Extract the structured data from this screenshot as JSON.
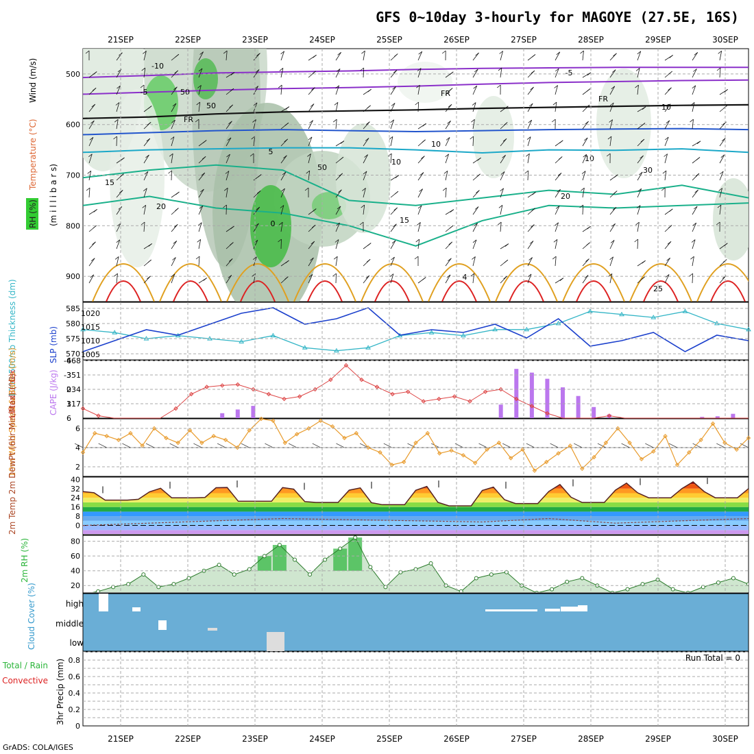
{
  "title": "GFS 0~10day 3-hourly for MAGOYE (27.5E, 16S)",
  "dates": [
    "21SEP",
    "22SEP",
    "23SEP",
    "24SEP",
    "25SEP",
    "26SEP",
    "27SEP",
    "28SEP",
    "29SEP",
    "30SEP"
  ],
  "credit": "GrADS: COLA/IGES",
  "colors": {
    "temp_cold": "#8a2fc9",
    "temp_cool": "#2255cc",
    "temp_mid": "#1ba8c8",
    "temp_warm": "#19b08a",
    "temp_hot": "#e0a020",
    "temp_very_hot": "#dd2222",
    "thickness": "#33b5c6",
    "slp": "#1a3fcc",
    "lifted": "#dd4444",
    "cape": "#bb77ee",
    "wind": "#e89a2a",
    "cloud": "#6aaed6",
    "rh_green": "#2bb53a"
  },
  "chart_data": [
    {
      "type": "heatmap",
      "name": "upper-air",
      "ylabel_parts": [
        "RH (%)",
        "Temperature (°C)",
        "Wind (m/s)"
      ],
      "ylabel2": "(m i l l i b a r s)",
      "y_ticks": [
        500,
        600,
        700,
        800,
        900
      ],
      "ylim": [
        950,
        450
      ],
      "contour_labels": [
        "-10",
        "-5",
        "FR",
        "FR",
        "FR",
        "-5",
        "5",
        "10",
        "15",
        "15",
        "20",
        "20",
        "4",
        "25",
        "0",
        "50",
        "50",
        "30",
        "10",
        "10",
        "50",
        "10"
      ],
      "isotherms": {
        "-10": [
          507,
          503,
          498,
          496,
          494,
          491,
          489,
          488,
          487,
          487,
          487
        ],
        "-5": [
          540,
          536,
          532,
          529,
          527,
          524,
          520,
          517,
          515,
          513,
          512
        ],
        "0": [
          588,
          585,
          579,
          575,
          573,
          571,
          568,
          566,
          564,
          562,
          561
        ],
        "5": [
          620,
          616,
          612,
          610,
          612,
          614,
          612,
          610,
          609,
          608,
          610
        ],
        "10": [
          655,
          650,
          648,
          646,
          646,
          650,
          656,
          650,
          651,
          648,
          655
        ],
        "15": [
          705,
          690,
          680,
          690,
          750,
          760,
          745,
          730,
          738,
          720,
          745
        ],
        "20": [
          760,
          742,
          765,
          775,
          800,
          840,
          790,
          760,
          765,
          760,
          755
        ]
      }
    },
    {
      "type": "line",
      "name": "thickness-slp",
      "ylabel_left": "1000-500mb Thickness (dm)",
      "ylabel_right": "SLP (mb)",
      "left_ticks": [
        570,
        575,
        580,
        585
      ],
      "right_ticks": [
        1005,
        1010,
        1015,
        1020
      ],
      "thickness": [
        578,
        577,
        575,
        576,
        575,
        574,
        576,
        572,
        571,
        572,
        576,
        577,
        576,
        578,
        578,
        580,
        584,
        583,
        582,
        584,
        580,
        578
      ],
      "slp": [
        1006,
        1010,
        1014,
        1012,
        1016,
        1020,
        1022,
        1016,
        1018,
        1022,
        1012,
        1014,
        1013,
        1016,
        1011,
        1018,
        1008,
        1010,
        1013,
        1006,
        1012,
        1010
      ]
    },
    {
      "type": "bar",
      "name": "cape-lifted",
      "ylabel_left": "Lifted Index",
      "ylabel_right": "CAPE (J/kg)",
      "left_ticks": [
        "-6",
        "-3",
        "0",
        "3",
        "6"
      ],
      "right_ticks": [
        "117",
        "234",
        "351",
        "468"
      ],
      "cape": [
        0,
        0,
        0,
        0,
        0,
        0,
        0,
        0,
        0,
        40,
        70,
        100,
        0,
        0,
        0,
        0,
        0,
        0,
        0,
        0,
        0,
        0,
        0,
        0,
        0,
        0,
        0,
        110,
        400,
        370,
        320,
        250,
        180,
        90,
        30,
        0,
        0,
        0,
        0,
        0,
        10,
        15,
        35,
        0
      ],
      "lifted": [
        4,
        5.5,
        6,
        6.5,
        7,
        6.5,
        4,
        1,
        -0.5,
        -0.8,
        -1,
        0,
        1,
        2,
        1.5,
        0,
        -2,
        -5,
        -2,
        -0.5,
        1,
        0.5,
        2.5,
        2,
        1.5,
        2.5,
        0.5,
        0,
        2,
        3.5,
        5,
        6.5,
        7,
        6.5,
        5.5,
        6.5,
        7,
        7,
        7,
        7,
        7,
        7,
        7,
        7
      ]
    },
    {
      "type": "line",
      "name": "wind10m",
      "ylabel": "10m Wind Speed & Barbs (m/s)",
      "y_ticks": [
        2,
        4,
        6
      ],
      "values": [
        3.5,
        5.5,
        5.2,
        4.8,
        5.5,
        4.2,
        6,
        5,
        4.5,
        5.8,
        4.5,
        5.2,
        4.8,
        4,
        5.8,
        7,
        6.8,
        4.5,
        5.4,
        6,
        6.8,
        6.2,
        5,
        5.5,
        4,
        3.5,
        2.2,
        2.5,
        4.5,
        5.5,
        3.4,
        3.7,
        3.2,
        2.4,
        3.8,
        4.5,
        2.9,
        3.8,
        1.6,
        2.5,
        3.4,
        4.2,
        1.8,
        3,
        4.5,
        6,
        4.5,
        2.8,
        3.6,
        5.2,
        2.2,
        3.5,
        4.8,
        6.5,
        4.5,
        3.8,
        5
      ]
    },
    {
      "type": "area",
      "name": "temp2m",
      "ylabel": "2m Temp 2m DewPt (6hr Min/Max) (°C)",
      "y_ticks": [
        0,
        8,
        16,
        24,
        32,
        40
      ],
      "max_temp": [
        30,
        34,
        35,
        33,
        34,
        35,
        34,
        36,
        37,
        38,
        40
      ],
      "min_temp": [
        22,
        24,
        21,
        20,
        18,
        17,
        19,
        20,
        24,
        24,
        25
      ],
      "dewpt": [
        0,
        2,
        4,
        6,
        5,
        4,
        3,
        6,
        2,
        4,
        6
      ]
    },
    {
      "type": "area",
      "name": "rh2m",
      "ylabel": "2m RH (%)",
      "y_ticks": [
        20,
        40,
        60,
        80
      ],
      "values": [
        8,
        12,
        18,
        22,
        35,
        18,
        22,
        30,
        40,
        48,
        35,
        42,
        60,
        75,
        55,
        35,
        55,
        70,
        85,
        45,
        18,
        38,
        42,
        50,
        20,
        12,
        30,
        35,
        38,
        20,
        10,
        15,
        25,
        30,
        20,
        10,
        15,
        22,
        28,
        15,
        10,
        18,
        24,
        30,
        22
      ]
    },
    {
      "type": "table",
      "name": "cloud-cover",
      "ylabel": "Cloud Cover (%)",
      "levels": [
        "high",
        "middle",
        "low"
      ]
    },
    {
      "type": "bar",
      "name": "precip",
      "ylabel_a": "Total / Rain",
      "ylabel_b": "Convective",
      "ylabel_c": "3hr Precip (mm)",
      "y_ticks": [
        "0",
        "0.2",
        "0.4",
        "0.6",
        "0.8"
      ],
      "annotation": "Run Total = 0"
    }
  ]
}
